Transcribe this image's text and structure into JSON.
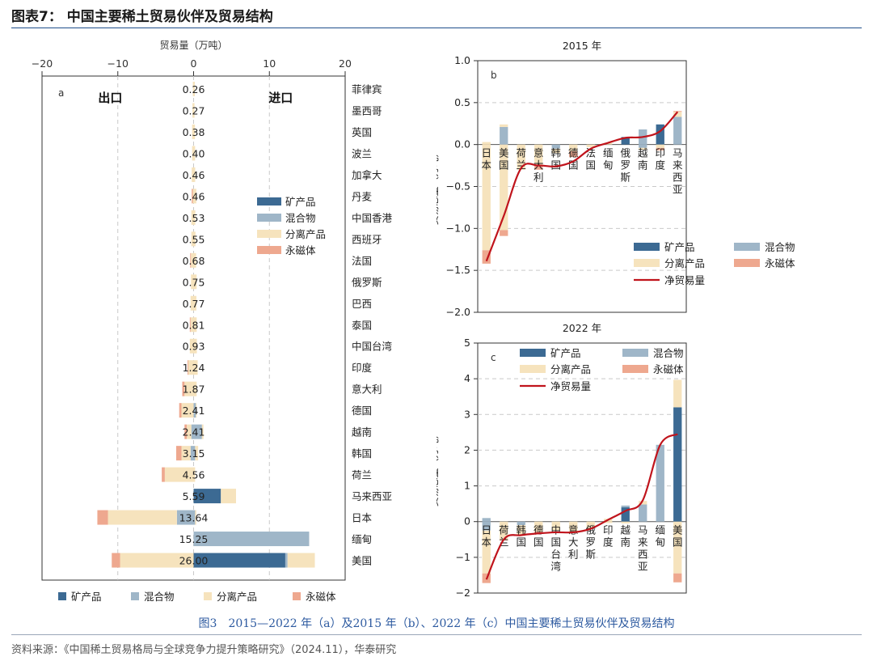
{
  "figure_title": "图表7： 中国主要稀土贸易伙伴及贸易结构",
  "caption": "图3　2015—2022 年（a）及2015 年（b）、2022 年（c）中国主要稀土贸易伙伴及贸易结构",
  "source": "资料来源：《中国稀土贸易格局与全球竞争力提升策略研究》（2024.11），华泰研究",
  "colors": {
    "矿产品": "#3c6a93",
    "混合物": "#9fb6c8",
    "分离产品": "#f6e3bd",
    "永磁体": "#eea88f",
    "净贸易量": "#c0141c"
  },
  "chart_data": [
    {
      "panel": "a",
      "type": "bar",
      "orientation": "horizontal-stacked",
      "title": "",
      "xlabel": "贸易量（万吨）",
      "xlim": [
        -20,
        20
      ],
      "xticks": [
        -20,
        -10,
        0,
        10,
        20
      ],
      "side_labels": {
        "left": "出口",
        "right": "进口"
      },
      "legend": [
        "矿产品",
        "混合物",
        "分离产品",
        "永磁体"
      ],
      "categories": [
        "菲律宾",
        "墨西哥",
        "英国",
        "波兰",
        "加拿大",
        "丹麦",
        "中国香港",
        "西班牙",
        "法国",
        "俄罗斯",
        "巴西",
        "泰国",
        "中国台湾",
        "印度",
        "意大利",
        "德国",
        "越南",
        "韩国",
        "荷兰",
        "马来西亚",
        "日本",
        "缅甸",
        "美国"
      ],
      "totals": [
        "0.26",
        "0.27",
        "0.38",
        "0.40",
        "0.46",
        "0.46",
        "0.53",
        "0.55",
        "0.68",
        "0.75",
        "0.77",
        "0.81",
        "0.93",
        "1.24",
        "1.87",
        "2.41",
        "2.41",
        "3.15",
        "4.56",
        "5.59",
        "13.64",
        "15.25",
        "26.00"
      ],
      "series": [
        {
          "name": "矿产品",
          "values": [
            [
              0,
              0
            ],
            [
              0,
              0
            ],
            [
              0,
              0
            ],
            [
              0,
              0
            ],
            [
              0,
              0
            ],
            [
              0,
              0
            ],
            [
              0,
              0
            ],
            [
              0,
              0
            ],
            [
              0,
              0
            ],
            [
              0,
              0
            ],
            [
              0,
              0
            ],
            [
              0,
              0
            ],
            [
              0,
              0
            ],
            [
              0,
              0
            ],
            [
              0,
              0
            ],
            [
              0,
              0
            ],
            [
              0,
              0
            ],
            [
              0,
              0
            ],
            [
              0,
              0
            ],
            [
              0,
              3.6
            ],
            [
              0,
              0
            ],
            [
              0,
              0
            ],
            [
              0,
              12.1
            ]
          ]
        },
        {
          "name": "混合物",
          "values": [
            [
              0,
              0
            ],
            [
              0,
              0
            ],
            [
              0,
              0
            ],
            [
              0,
              0
            ],
            [
              0,
              0
            ],
            [
              0,
              0
            ],
            [
              0,
              0
            ],
            [
              0,
              0
            ],
            [
              0,
              0
            ],
            [
              0,
              0
            ],
            [
              0,
              0
            ],
            [
              0,
              0
            ],
            [
              0,
              0
            ],
            [
              0,
              0
            ],
            [
              0,
              0
            ],
            [
              0,
              0.3
            ],
            [
              -0.3,
              1.1
            ],
            [
              -0.4,
              0.2
            ],
            [
              0,
              0
            ],
            [
              0,
              0
            ],
            [
              -2.2,
              0.2
            ],
            [
              0,
              15.25
            ],
            [
              0,
              0.3
            ]
          ]
        },
        {
          "name": "分离产品",
          "values": [
            [
              -0.1,
              0.16
            ],
            [
              -0.15,
              0.12
            ],
            [
              -0.2,
              0.18
            ],
            [
              -0.2,
              0.2
            ],
            [
              -0.25,
              0.21
            ],
            [
              -0.1,
              0.36
            ],
            [
              -0.3,
              0.23
            ],
            [
              -0.3,
              0.25
            ],
            [
              -0.35,
              0.33
            ],
            [
              -0.35,
              0.4
            ],
            [
              -0.4,
              0.37
            ],
            [
              -0.4,
              0.41
            ],
            [
              -0.5,
              0.43
            ],
            [
              -0.7,
              0.54
            ],
            [
              -1.2,
              0.4
            ],
            [
              -1.6,
              0.1
            ],
            [
              -0.6,
              0.2
            ],
            [
              -1.2,
              0.4
            ],
            [
              -3.8,
              0.2
            ],
            [
              0,
              2.0
            ],
            [
              -9.1,
              0.15
            ],
            [
              0,
              0
            ],
            [
              -9.7,
              3.6
            ]
          ]
        },
        {
          "name": "永磁体",
          "values": [
            [
              0,
              0
            ],
            [
              0,
              0
            ],
            [
              0,
              0
            ],
            [
              0,
              0
            ],
            [
              0,
              0
            ],
            [
              -0.15,
              0
            ],
            [
              0,
              0
            ],
            [
              0,
              0
            ],
            [
              -0.1,
              0
            ],
            [
              0,
              0
            ],
            [
              0,
              0
            ],
            [
              -0.1,
              0
            ],
            [
              0,
              0
            ],
            [
              -0.1,
              0
            ],
            [
              -0.3,
              0
            ],
            [
              -0.3,
              0
            ],
            [
              -0.3,
              0
            ],
            [
              -0.7,
              0
            ],
            [
              -0.4,
              0
            ],
            [
              0,
              0
            ],
            [
              -1.4,
              0
            ],
            [
              0,
              0
            ],
            [
              -1.1,
              0
            ]
          ]
        }
      ]
    },
    {
      "panel": "b",
      "type": "bar",
      "title": "2015 年",
      "ylabel": "贸易总量（万吨）",
      "ylim": [
        -2.0,
        1.0
      ],
      "yticks": [
        "1.0",
        "0.5",
        "0.0",
        "−0.5",
        "−1.0",
        "−1.5",
        "−2.0"
      ],
      "legend": [
        "矿产品",
        "混合物",
        "分离产品",
        "永磁体",
        "净贸易量"
      ],
      "categories": [
        "日\n本",
        "美\n国",
        "荷\n兰",
        "意\n大\n利",
        "韩\n国",
        "德\n国",
        "法\n国",
        "缅\n甸",
        "俄\n罗\n斯",
        "越\n南",
        "印\n度",
        "马\n来\n西\n亚"
      ],
      "series": [
        {
          "name": "矿产品",
          "values": [
            [
              0,
              0
            ],
            [
              0,
              0
            ],
            [
              0,
              0
            ],
            [
              0,
              0
            ],
            [
              0,
              0
            ],
            [
              0,
              0
            ],
            [
              0,
              0
            ],
            [
              0,
              0
            ],
            [
              0,
              0.09
            ],
            [
              0,
              0
            ],
            [
              0,
              0.24
            ],
            [
              0,
              0
            ]
          ]
        },
        {
          "name": "混合物",
          "values": [
            [
              0,
              0
            ],
            [
              0,
              0.21
            ],
            [
              0,
              0
            ],
            [
              0,
              0
            ],
            [
              -0.05,
              0
            ],
            [
              0,
              0
            ],
            [
              0,
              0
            ],
            [
              0,
              0
            ],
            [
              0,
              0
            ],
            [
              -0.04,
              0.18
            ],
            [
              0,
              0
            ],
            [
              0,
              0.33
            ]
          ]
        },
        {
          "name": "分离产品",
          "values": [
            [
              -1.26,
              0.03
            ],
            [
              -1.02,
              0.03
            ],
            [
              -0.3,
              0
            ],
            [
              -0.25,
              0
            ],
            [
              -0.05,
              0
            ],
            [
              -0.08,
              0
            ],
            [
              -0.03,
              0
            ],
            [
              0,
              0.02
            ],
            [
              0,
              0
            ],
            [
              -0.02,
              0
            ],
            [
              -0.04,
              0
            ],
            [
              0,
              0.06
            ]
          ]
        },
        {
          "name": "永磁体",
          "values": [
            [
              -0.16,
              0
            ],
            [
              -0.07,
              0
            ],
            [
              0,
              0
            ],
            [
              -0.05,
              0
            ],
            [
              0,
              0
            ],
            [
              -0.07,
              0
            ],
            [
              0,
              0
            ],
            [
              0,
              0
            ],
            [
              0,
              0
            ],
            [
              0,
              0
            ],
            [
              -0.03,
              0
            ],
            [
              0,
              0.01
            ]
          ]
        }
      ],
      "net": [
        -1.39,
        -0.85,
        -0.28,
        -0.25,
        -0.26,
        -0.2,
        -0.05,
        0.02,
        0.08,
        0.09,
        0.16,
        0.39
      ]
    },
    {
      "panel": "c",
      "type": "bar",
      "title": "2022 年",
      "ylabel": "贸易总量（万吨）",
      "ylim": [
        -2,
        5
      ],
      "yticks": [
        "5",
        "4",
        "3",
        "2",
        "1",
        "0",
        "−1",
        "−2"
      ],
      "legend": [
        "矿产品",
        "混合物",
        "分离产品",
        "永磁体",
        "净贸易量"
      ],
      "categories": [
        "日\n本",
        "荷\n兰",
        "韩\n国",
        "德\n国",
        "中\n国\n台\n湾",
        "意\n大\n利",
        "俄\n罗\n斯",
        "印\n度",
        "越\n南",
        "马\n来\n西\n亚",
        "缅\n甸",
        "美\n国"
      ],
      "series": [
        {
          "name": "矿产品",
          "values": [
            [
              0,
              0
            ],
            [
              0,
              0
            ],
            [
              0,
              0
            ],
            [
              0,
              0
            ],
            [
              0,
              0
            ],
            [
              0,
              0
            ],
            [
              0,
              0
            ],
            [
              0,
              0
            ],
            [
              0,
              0.4
            ],
            [
              0,
              0
            ],
            [
              0,
              0
            ],
            [
              0,
              3.2
            ]
          ]
        },
        {
          "name": "混合物",
          "values": [
            [
              -0.25,
              0.1
            ],
            [
              0,
              0
            ],
            [
              -0.1,
              0
            ],
            [
              0,
              0
            ],
            [
              0,
              0
            ],
            [
              0,
              0
            ],
            [
              0,
              0
            ],
            [
              0,
              0
            ],
            [
              0,
              0.05
            ],
            [
              0,
              0.48
            ],
            [
              0,
              2.15
            ],
            [
              0,
              0
            ]
          ]
        },
        {
          "name": "分离产品",
          "values": [
            [
              -1.2,
              0
            ],
            [
              -0.5,
              0
            ],
            [
              -0.3,
              0
            ],
            [
              -0.28,
              0
            ],
            [
              -0.25,
              0
            ],
            [
              -0.28,
              0
            ],
            [
              -0.2,
              0
            ],
            [
              -0.04,
              0.08
            ],
            [
              -0.05,
              0
            ],
            [
              0,
              0.1
            ],
            [
              0,
              0
            ],
            [
              -1.45,
              0.77
            ]
          ]
        },
        {
          "name": "永磁体",
          "values": [
            [
              -0.27,
              0
            ],
            [
              -0.03,
              0
            ],
            [
              0,
              0
            ],
            [
              -0.05,
              0
            ],
            [
              0,
              0
            ],
            [
              -0.04,
              0
            ],
            [
              0,
              0
            ],
            [
              0,
              0
            ],
            [
              0,
              0
            ],
            [
              0,
              0
            ],
            [
              0,
              0
            ],
            [
              -0.25,
              0
            ]
          ]
        }
      ],
      "net": [
        -1.62,
        -0.5,
        -0.38,
        -0.33,
        -0.3,
        -0.3,
        -0.2,
        0.05,
        0.3,
        0.6,
        2.15,
        2.45
      ]
    }
  ]
}
